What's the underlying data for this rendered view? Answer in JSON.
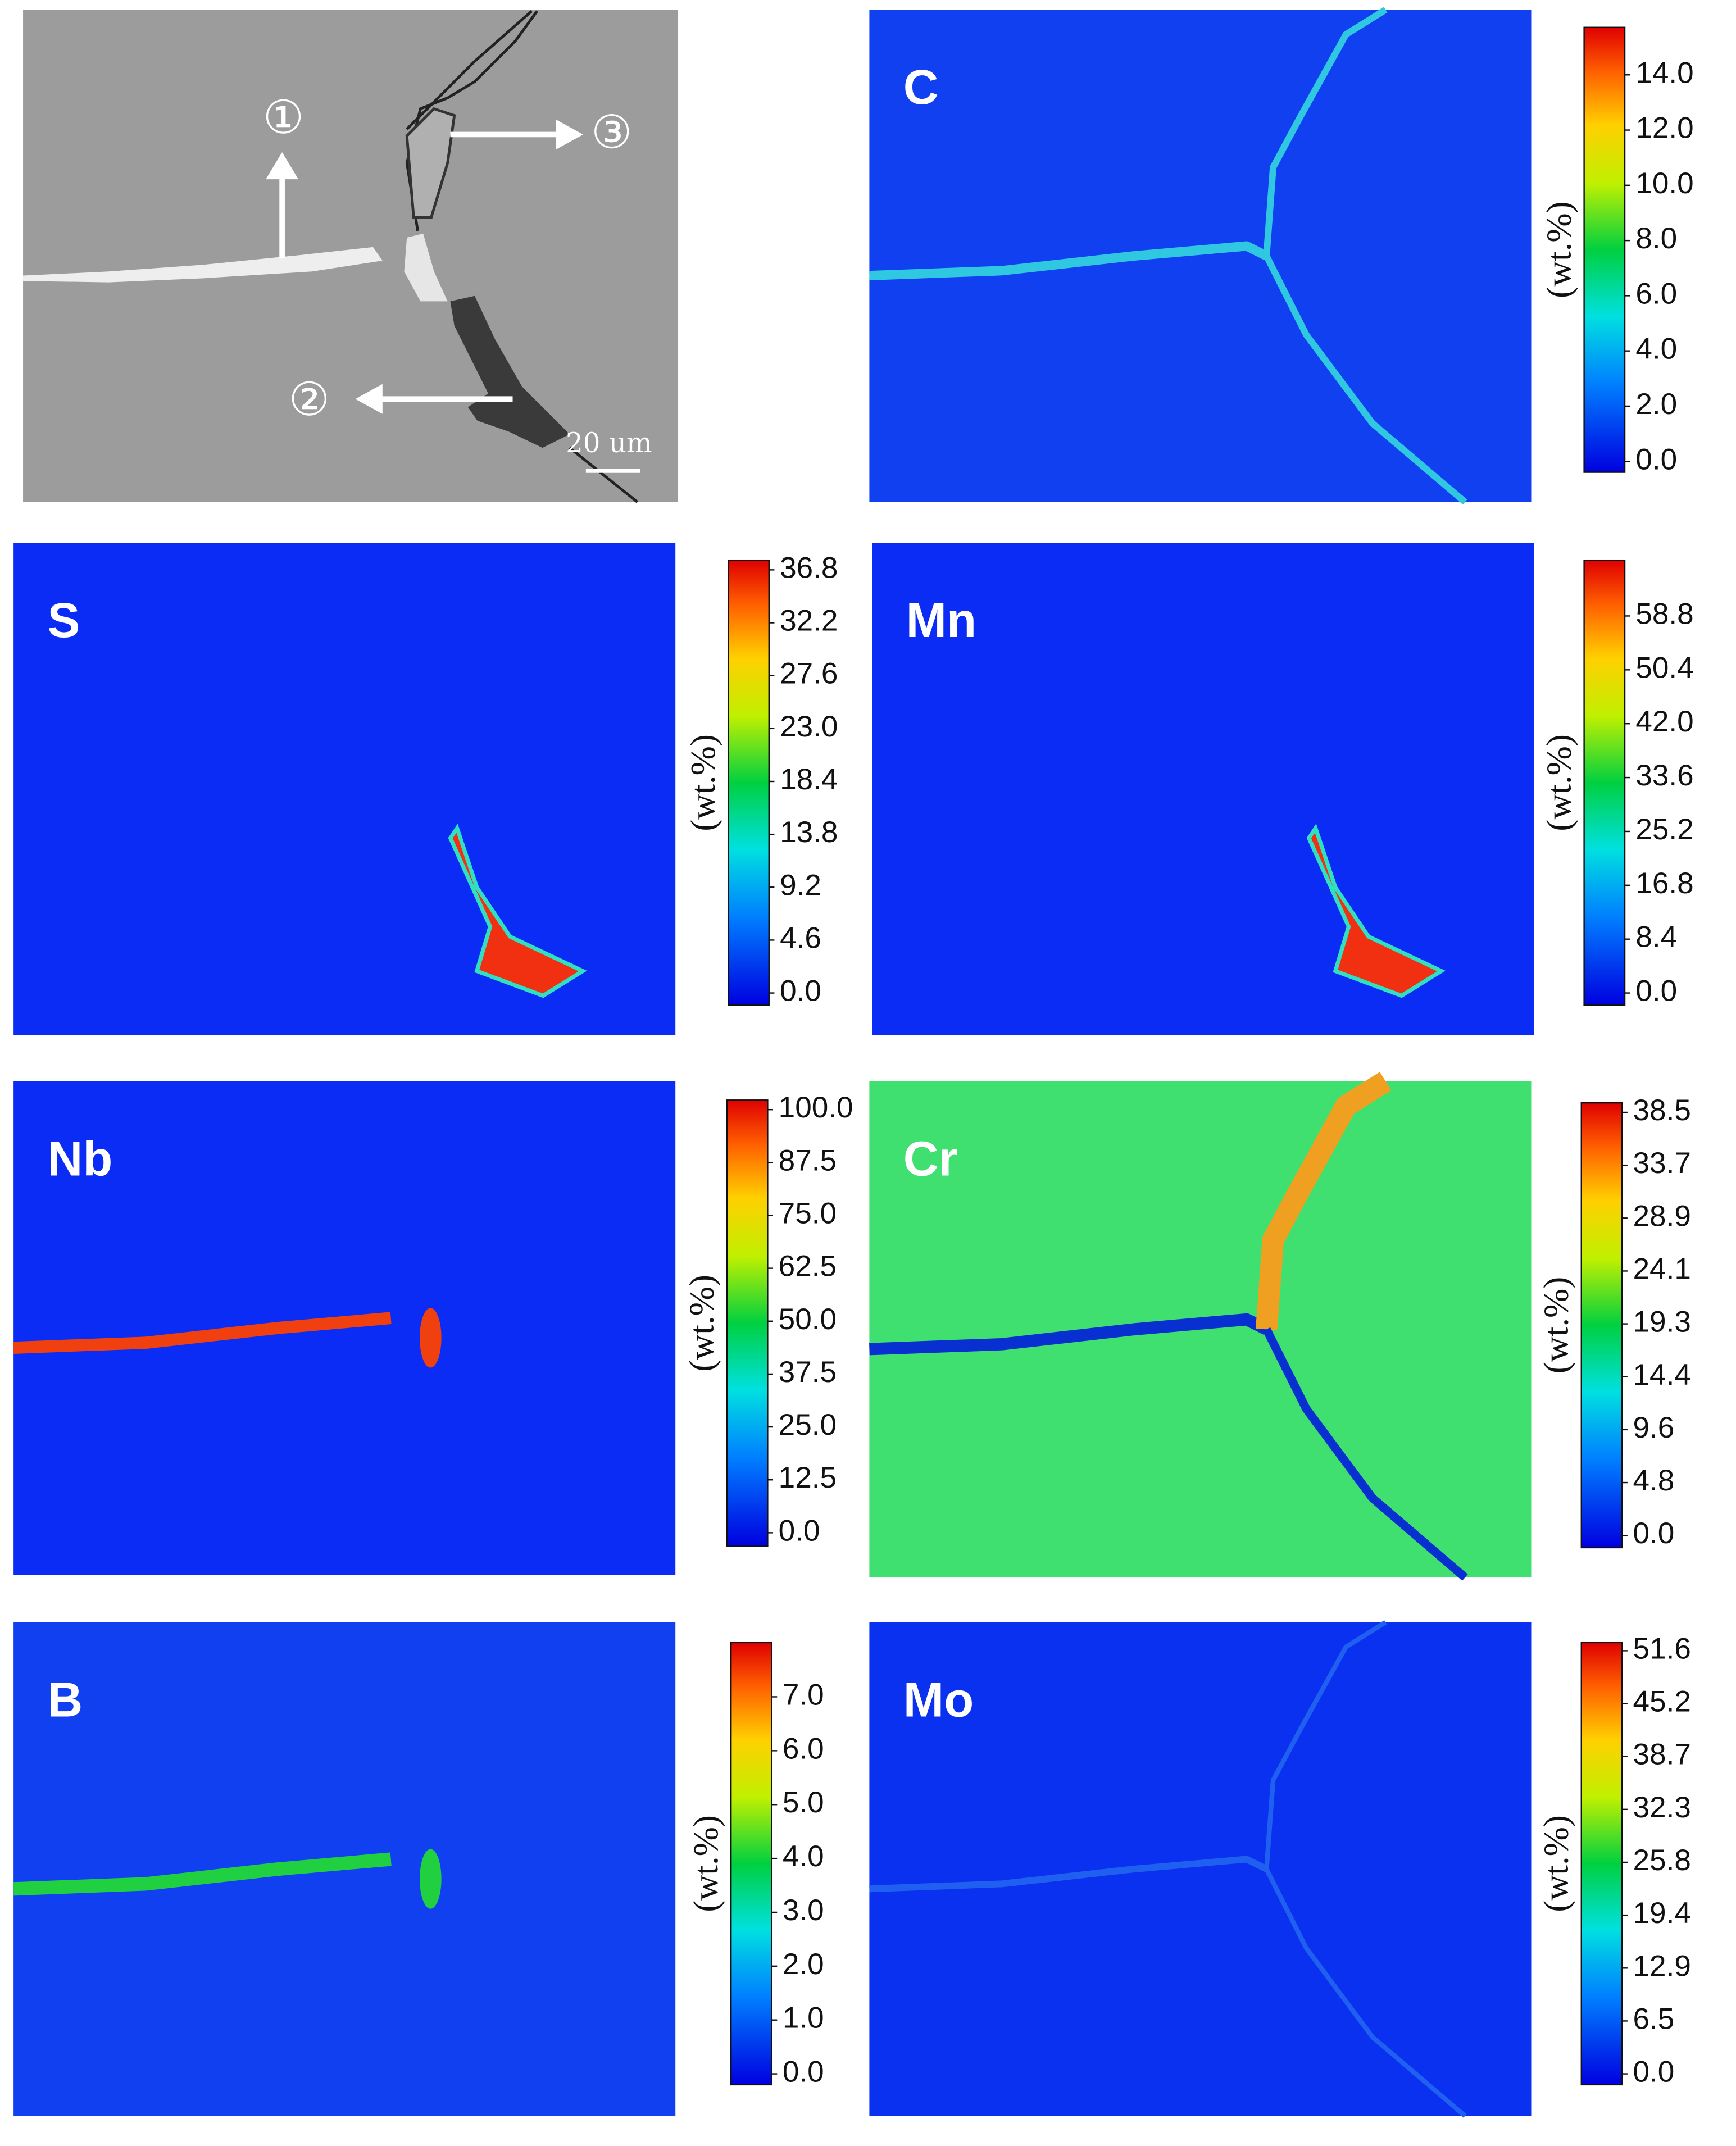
{
  "sem": {
    "markers": [
      "①",
      "②",
      "③"
    ],
    "scale_bar": "20 um"
  },
  "panels": [
    {
      "label": "C",
      "colorbar_label": "(wt.%)",
      "ticks": [
        "14.0",
        "12.0",
        "10.0",
        "8.0",
        "6.0",
        "4.0",
        "2.0",
        "0.0"
      ]
    },
    {
      "label": "S",
      "colorbar_label": "(wt.%)",
      "ticks": [
        "36.8",
        "32.2",
        "27.6",
        "23.0",
        "18.4",
        "13.8",
        "9.2",
        "4.6",
        "0.0"
      ]
    },
    {
      "label": "Mn",
      "colorbar_label": "(wt.%)",
      "ticks": [
        "58.8",
        "50.4",
        "42.0",
        "33.6",
        "25.2",
        "16.8",
        "8.4",
        "0.0"
      ]
    },
    {
      "label": "Nb",
      "colorbar_label": "(wt.%)",
      "ticks": [
        "100.0",
        "87.5",
        "75.0",
        "62.5",
        "50.0",
        "37.5",
        "25.0",
        "12.5",
        "0.0"
      ]
    },
    {
      "label": "Cr",
      "colorbar_label": "(wt.%)",
      "ticks": [
        "38.5",
        "33.7",
        "28.9",
        "24.1",
        "19.3",
        "14.4",
        "9.6",
        "4.8",
        "0.0"
      ]
    },
    {
      "label": "B",
      "colorbar_label": "(wt.%)",
      "ticks": [
        "7.0",
        "6.0",
        "5.0",
        "4.0",
        "3.0",
        "2.0",
        "1.0",
        "0.0"
      ]
    },
    {
      "label": "Mo",
      "colorbar_label": "(wt.%)",
      "ticks": [
        "51.6",
        "45.2",
        "38.7",
        "32.3",
        "25.8",
        "19.4",
        "12.9",
        "6.5",
        "0.0"
      ]
    }
  ]
}
